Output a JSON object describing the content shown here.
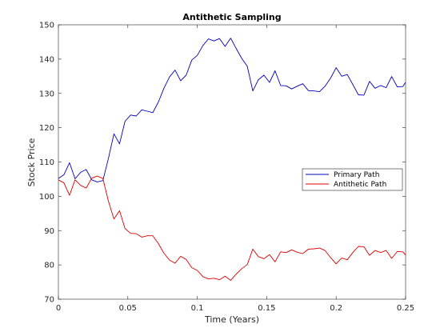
{
  "chart_data": {
    "type": "line",
    "title": "Antithetic Sampling",
    "xlabel": "Time (Years)",
    "ylabel": "Stock Price",
    "xlim": [
      0,
      0.25
    ],
    "ylim": [
      70,
      150
    ],
    "xticks": [
      0,
      0.05,
      0.1,
      0.15,
      0.2,
      0.25
    ],
    "xtick_labels": [
      "0",
      "0.05",
      "0.1",
      "0.15",
      "0.2",
      "0.25"
    ],
    "yticks": [
      70,
      80,
      90,
      100,
      110,
      120,
      130,
      140,
      150
    ],
    "ytick_labels": [
      "70",
      "80",
      "90",
      "100",
      "110",
      "120",
      "130",
      "140",
      "150"
    ],
    "grid": false,
    "legend_position": "right",
    "x": [
      0,
      0.004,
      0.008,
      0.012,
      0.016,
      0.02,
      0.024,
      0.028,
      0.032,
      0.036,
      0.04,
      0.044,
      0.048,
      0.052,
      0.056,
      0.06,
      0.064,
      0.068,
      0.072,
      0.076,
      0.08,
      0.084,
      0.088,
      0.092,
      0.096,
      0.1,
      0.104,
      0.108,
      0.112,
      0.116,
      0.12,
      0.124,
      0.128,
      0.132,
      0.136,
      0.14,
      0.144,
      0.148,
      0.152,
      0.156,
      0.16,
      0.164,
      0.168,
      0.172,
      0.176,
      0.18,
      0.184,
      0.188,
      0.192,
      0.196,
      0.2,
      0.204,
      0.208,
      0.212,
      0.216,
      0.22,
      0.224,
      0.228,
      0.232,
      0.236,
      0.24,
      0.244,
      0.248,
      0.25
    ],
    "series": [
      {
        "name": "Primary Path",
        "color": "#0000bb",
        "values": [
          105.2,
          106.3,
          109.8,
          105.1,
          107.0,
          107.8,
          104.8,
          104.2,
          104.6,
          111.0,
          118.2,
          115.3,
          121.9,
          123.7,
          123.4,
          125.2,
          124.8,
          124.4,
          127.5,
          131.5,
          134.8,
          136.8,
          133.7,
          135.3,
          139.7,
          141.1,
          143.9,
          145.9,
          145.3,
          146.0,
          143.7,
          146.1,
          143.1,
          140.2,
          137.9,
          130.7,
          134.0,
          135.3,
          133.2,
          136.6,
          132.3,
          132.2,
          131.3,
          132.1,
          132.8,
          130.8,
          130.7,
          130.5,
          132.1,
          134.5,
          137.5,
          135.0,
          135.5,
          132.6,
          129.6,
          129.5,
          133.5,
          131.5,
          132.3,
          131.7,
          134.9,
          131.9,
          132.0,
          133.2
        ]
      },
      {
        "name": "Antithetic Path",
        "color": "#dd0000",
        "values": [
          104.8,
          103.9,
          100.3,
          104.8,
          103.2,
          102.4,
          105.3,
          105.9,
          105.2,
          98.6,
          93.4,
          95.8,
          90.6,
          89.2,
          89.1,
          88.1,
          88.5,
          88.5,
          86.2,
          83.4,
          81.4,
          80.5,
          82.5,
          81.6,
          79.2,
          78.4,
          76.6,
          75.9,
          76.1,
          75.7,
          76.7,
          75.5,
          77.3,
          78.9,
          80.1,
          84.6,
          82.4,
          81.8,
          83.0,
          80.9,
          83.8,
          83.6,
          84.4,
          83.7,
          83.3,
          84.6,
          84.7,
          84.9,
          84.2,
          82.1,
          80.3,
          82.0,
          81.5,
          83.6,
          85.4,
          85.3,
          82.8,
          84.2,
          83.6,
          84.2,
          81.9,
          83.9,
          83.8,
          82.9
        ]
      }
    ]
  }
}
